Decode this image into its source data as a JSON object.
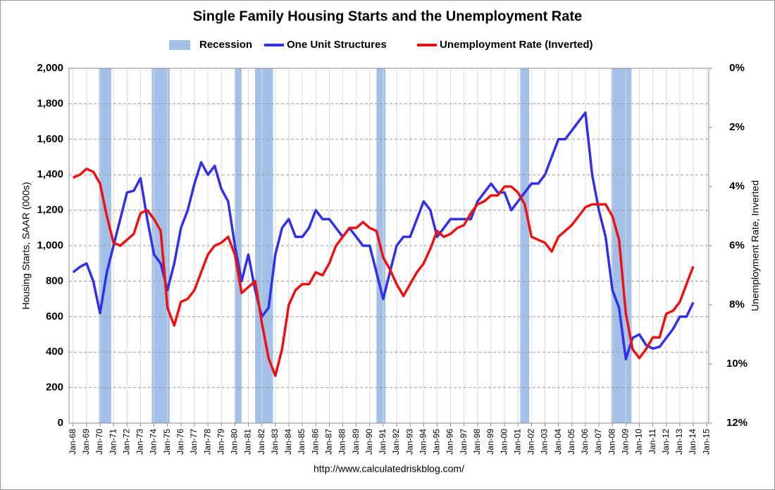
{
  "chart_data": {
    "type": "line",
    "title": "Single Family Housing Starts and the Unemployment Rate",
    "ylabel": "Housing Starts, SAAR (000s)",
    "y2label": "Unemployment Rate, Inverted",
    "annotation": "http://www.calculatedriskblog.com/",
    "grid": true,
    "legend": "top",
    "recessions": {
      "name": "Recession",
      "color": "#a3c0e8",
      "periods": [
        [
          1969.92,
          1970.83
        ],
        [
          1973.83,
          1975.17
        ],
        [
          1980.0,
          1980.5
        ],
        [
          1981.5,
          1982.83
        ],
        [
          1990.5,
          1991.17
        ],
        [
          2001.17,
          2001.83
        ],
        [
          2007.92,
          2009.42
        ]
      ]
    },
    "xlim": [
      1967.7,
      2015.15
    ],
    "xticks": [
      {
        "value": 1968,
        "label": "Jan-68"
      },
      {
        "value": 1969,
        "label": "Jan-69"
      },
      {
        "value": 1970,
        "label": "Jan-70"
      },
      {
        "value": 1971,
        "label": "Jan-71"
      },
      {
        "value": 1972,
        "label": "Jan-72"
      },
      {
        "value": 1973,
        "label": "Jan-73"
      },
      {
        "value": 1974,
        "label": "Jan-74"
      },
      {
        "value": 1975,
        "label": "Jan-75"
      },
      {
        "value": 1976,
        "label": "Jan-76"
      },
      {
        "value": 1977,
        "label": "Jan-77"
      },
      {
        "value": 1978,
        "label": "Jan-78"
      },
      {
        "value": 1979,
        "label": "Jan-79"
      },
      {
        "value": 1980,
        "label": "Jan-80"
      },
      {
        "value": 1981,
        "label": "Jan-81"
      },
      {
        "value": 1982,
        "label": "Jan-82"
      },
      {
        "value": 1983,
        "label": "Jan-83"
      },
      {
        "value": 1984,
        "label": "Jan-84"
      },
      {
        "value": 1985,
        "label": "Jan-85"
      },
      {
        "value": 1986,
        "label": "Jan-86"
      },
      {
        "value": 1987,
        "label": "Jan-87"
      },
      {
        "value": 1988,
        "label": "Jan-88"
      },
      {
        "value": 1989,
        "label": "Jan-89"
      },
      {
        "value": 1990,
        "label": "Jan-90"
      },
      {
        "value": 1991,
        "label": "Jan-91"
      },
      {
        "value": 1992,
        "label": "Jan-92"
      },
      {
        "value": 1993,
        "label": "Jan-93"
      },
      {
        "value": 1994,
        "label": "Jan-94"
      },
      {
        "value": 1995,
        "label": "Jan-95"
      },
      {
        "value": 1996,
        "label": "Jan-96"
      },
      {
        "value": 1997,
        "label": "Jan-97"
      },
      {
        "value": 1998,
        "label": "Jan-98"
      },
      {
        "value": 1999,
        "label": "Jan-99"
      },
      {
        "value": 2000,
        "label": "Jan-00"
      },
      {
        "value": 2001,
        "label": "Jan-01"
      },
      {
        "value": 2002,
        "label": "Jan-02"
      },
      {
        "value": 2003,
        "label": "Jan-03"
      },
      {
        "value": 2004,
        "label": "Jan-04"
      },
      {
        "value": 2005,
        "label": "Jan-05"
      },
      {
        "value": 2006,
        "label": "Jan-06"
      },
      {
        "value": 2007,
        "label": "Jan-07"
      },
      {
        "value": 2008,
        "label": "Jan-08"
      },
      {
        "value": 2009,
        "label": "Jan-09"
      },
      {
        "value": 2010,
        "label": "Jan-10"
      },
      {
        "value": 2011,
        "label": "Jan-11"
      },
      {
        "value": 2012,
        "label": "Jan-12"
      },
      {
        "value": 2013,
        "label": "Jan-13"
      },
      {
        "value": 2014,
        "label": "Jan-14"
      },
      {
        "value": 2015,
        "label": "Jan-15"
      }
    ],
    "ylim": [
      0,
      2000
    ],
    "yticks": [
      0,
      200,
      400,
      600,
      800,
      {
        "value": 1000,
        "label": "1,000"
      },
      {
        "value": 1200,
        "label": "1,200"
      },
      {
        "value": 1400,
        "label": "1,400"
      },
      {
        "value": 1600,
        "label": "1,600"
      },
      {
        "value": 1800,
        "label": "1,800"
      },
      {
        "value": 2000,
        "label": "2,000"
      }
    ],
    "y2lim": [
      12,
      0
    ],
    "y2ticks": [
      {
        "value": 0,
        "label": "0%"
      },
      {
        "value": 2,
        "label": "2%"
      },
      {
        "value": 4,
        "label": "4%"
      },
      {
        "value": 6,
        "label": "6%"
      },
      {
        "value": 8,
        "label": "8%"
      },
      {
        "value": 10,
        "label": "10%"
      },
      {
        "value": 12,
        "label": "12%"
      }
    ],
    "x": [
      1968,
      1968.5,
      1969,
      1969.5,
      1970,
      1970.5,
      1971,
      1971.5,
      1972,
      1972.5,
      1973,
      1973.5,
      1974,
      1974.5,
      1975,
      1975.5,
      1976,
      1976.5,
      1977,
      1977.5,
      1978,
      1978.5,
      1979,
      1979.5,
      1980,
      1980.5,
      1981,
      1981.5,
      1982,
      1982.5,
      1983,
      1983.5,
      1984,
      1984.5,
      1985,
      1985.5,
      1986,
      1986.5,
      1987,
      1987.5,
      1988,
      1988.5,
      1989,
      1989.5,
      1990,
      1990.5,
      1991,
      1991.5,
      1992,
      1992.5,
      1993,
      1993.5,
      1994,
      1994.5,
      1995,
      1995.5,
      1996,
      1996.5,
      1997,
      1997.5,
      1998,
      1998.5,
      1999,
      1999.5,
      2000,
      2000.5,
      2001,
      2001.5,
      2002,
      2002.5,
      2003,
      2003.5,
      2004,
      2004.5,
      2005,
      2005.5,
      2006,
      2006.5,
      2007,
      2007.5,
      2008,
      2008.5,
      2009,
      2009.5,
      2010,
      2010.5,
      2011,
      2011.5,
      2012,
      2012.5,
      2013,
      2013.5,
      2014
    ],
    "series": [
      {
        "name": "One Unit Structures",
        "color": "#3030e8",
        "values": [
          850,
          880,
          900,
          800,
          620,
          850,
          1000,
          1150,
          1300,
          1310,
          1380,
          1150,
          950,
          900,
          750,
          900,
          1100,
          1200,
          1350,
          1470,
          1400,
          1450,
          1320,
          1250,
          1000,
          800,
          950,
          750,
          600,
          650,
          950,
          1100,
          1150,
          1050,
          1050,
          1100,
          1200,
          1150,
          1150,
          1100,
          1050,
          1100,
          1050,
          1000,
          1000,
          850,
          700,
          850,
          1000,
          1050,
          1050,
          1150,
          1250,
          1200,
          1050,
          1100,
          1150,
          1150,
          1150,
          1150,
          1250,
          1300,
          1350,
          1300,
          1300,
          1200,
          1250,
          1300,
          1350,
          1350,
          1400,
          1500,
          1600,
          1600,
          1650,
          1700,
          1750,
          1400,
          1200,
          1050,
          750,
          650,
          360,
          480,
          500,
          440,
          420,
          430,
          480,
          530,
          600,
          600,
          680
        ]
      },
      {
        "name": "Unemployment Rate (Inverted)",
        "color": "#ee1111",
        "axis": "y2",
        "values": [
          3.7,
          3.6,
          3.4,
          3.5,
          3.9,
          5.0,
          5.9,
          6.0,
          5.8,
          5.6,
          4.9,
          4.8,
          5.1,
          5.5,
          8.1,
          8.7,
          7.9,
          7.8,
          7.5,
          6.9,
          6.3,
          6.0,
          5.9,
          5.7,
          6.3,
          7.6,
          7.4,
          7.2,
          8.6,
          9.8,
          10.4,
          9.5,
          8.0,
          7.5,
          7.3,
          7.3,
          6.9,
          7.0,
          6.6,
          6.0,
          5.7,
          5.4,
          5.4,
          5.2,
          5.4,
          5.5,
          6.4,
          6.8,
          7.3,
          7.7,
          7.3,
          6.9,
          6.6,
          6.1,
          5.5,
          5.7,
          5.6,
          5.4,
          5.3,
          4.9,
          4.6,
          4.5,
          4.3,
          4.3,
          4.0,
          4.0,
          4.2,
          4.6,
          5.7,
          5.8,
          5.9,
          6.2,
          5.7,
          5.5,
          5.3,
          5.0,
          4.7,
          4.6,
          4.6,
          4.6,
          5.0,
          5.8,
          8.3,
          9.5,
          9.8,
          9.5,
          9.1,
          9.1,
          8.3,
          8.2,
          7.9,
          7.3,
          6.7
        ]
      }
    ]
  }
}
